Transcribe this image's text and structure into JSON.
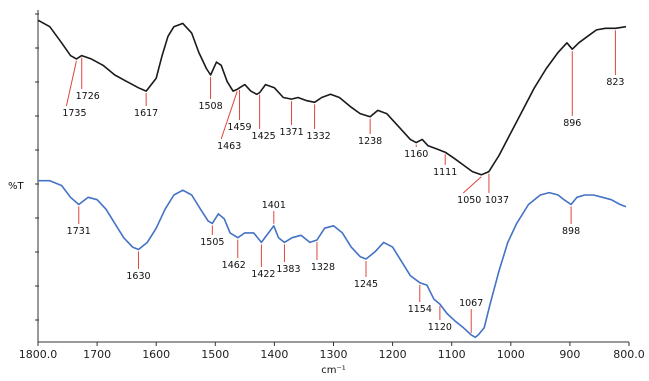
{
  "chart_data": {
    "type": "line",
    "xlabel": "cm⁻¹",
    "ylabel": "%T",
    "xlim": [
      1800,
      800
    ],
    "x_reversed": true,
    "grid": false,
    "x_ticks": [
      "1800.0",
      "1700",
      "1600",
      "1500",
      "1400",
      "1300",
      "1200",
      "1100",
      "1000",
      "900",
      "800.0"
    ],
    "x_tick_values": [
      1800,
      1700,
      1600,
      1500,
      1400,
      1300,
      1200,
      1100,
      1000,
      900,
      800
    ],
    "series": [
      {
        "color": "#1a1a1a",
        "points": [
          [
            1800,
            87
          ],
          [
            1780,
            85
          ],
          [
            1760,
            80
          ],
          [
            1745,
            76
          ],
          [
            1735,
            75
          ],
          [
            1726,
            76
          ],
          [
            1710,
            75
          ],
          [
            1690,
            73
          ],
          [
            1670,
            70
          ],
          [
            1650,
            68
          ],
          [
            1630,
            66
          ],
          [
            1617,
            65
          ],
          [
            1600,
            69
          ],
          [
            1590,
            76
          ],
          [
            1580,
            82
          ],
          [
            1570,
            85
          ],
          [
            1555,
            86
          ],
          [
            1540,
            83
          ],
          [
            1528,
            77
          ],
          [
            1515,
            72
          ],
          [
            1508,
            70
          ],
          [
            1498,
            74
          ],
          [
            1490,
            73
          ],
          [
            1480,
            68
          ],
          [
            1470,
            65
          ],
          [
            1463,
            65.5
          ],
          [
            1459,
            66
          ],
          [
            1450,
            67
          ],
          [
            1440,
            65
          ],
          [
            1430,
            64
          ],
          [
            1425,
            64.5
          ],
          [
            1415,
            67
          ],
          [
            1400,
            66
          ],
          [
            1385,
            63
          ],
          [
            1371,
            62.5
          ],
          [
            1360,
            63
          ],
          [
            1345,
            62
          ],
          [
            1332,
            61.5
          ],
          [
            1320,
            63
          ],
          [
            1305,
            64
          ],
          [
            1290,
            63
          ],
          [
            1270,
            60
          ],
          [
            1255,
            58
          ],
          [
            1238,
            57
          ],
          [
            1225,
            59
          ],
          [
            1210,
            58
          ],
          [
            1195,
            55
          ],
          [
            1180,
            52
          ],
          [
            1170,
            50
          ],
          [
            1160,
            49
          ],
          [
            1150,
            50
          ],
          [
            1140,
            48
          ],
          [
            1125,
            47
          ],
          [
            1111,
            46
          ],
          [
            1095,
            44
          ],
          [
            1080,
            42
          ],
          [
            1065,
            40
          ],
          [
            1050,
            39
          ],
          [
            1037,
            40
          ],
          [
            1020,
            45
          ],
          [
            1000,
            52
          ],
          [
            980,
            59
          ],
          [
            960,
            66
          ],
          [
            940,
            72
          ],
          [
            920,
            77
          ],
          [
            905,
            80
          ],
          [
            896,
            78
          ],
          [
            885,
            80
          ],
          [
            870,
            82
          ],
          [
            855,
            84
          ],
          [
            840,
            84.5
          ],
          [
            823,
            84.5
          ],
          [
            805,
            85
          ]
        ],
        "peaks": [
          {
            "wavenumber": 1735,
            "label": "1735"
          },
          {
            "wavenumber": 1726,
            "label": "1726"
          },
          {
            "wavenumber": 1617,
            "label": "1617"
          },
          {
            "wavenumber": 1508,
            "label": "1508"
          },
          {
            "wavenumber": 1463,
            "label": "1463"
          },
          {
            "wavenumber": 1459,
            "label": "1459"
          },
          {
            "wavenumber": 1425,
            "label": "1425"
          },
          {
            "wavenumber": 1371,
            "label": "1371"
          },
          {
            "wavenumber": 1332,
            "label": "1332"
          },
          {
            "wavenumber": 1238,
            "label": "1238"
          },
          {
            "wavenumber": 1160,
            "label": "1160"
          },
          {
            "wavenumber": 1111,
            "label": "1111"
          },
          {
            "wavenumber": 1050,
            "label": "1050"
          },
          {
            "wavenumber": 1037,
            "label": "1037"
          },
          {
            "wavenumber": 896,
            "label": "896"
          },
          {
            "wavenumber": 823,
            "label": "823"
          }
        ]
      },
      {
        "color": "#4472c4",
        "points": [
          [
            1800,
            37
          ],
          [
            1780,
            37
          ],
          [
            1760,
            36
          ],
          [
            1745,
            33.5
          ],
          [
            1731,
            32
          ],
          [
            1715,
            33.5
          ],
          [
            1700,
            33
          ],
          [
            1685,
            31
          ],
          [
            1670,
            28
          ],
          [
            1655,
            25
          ],
          [
            1640,
            23
          ],
          [
            1630,
            22.5
          ],
          [
            1615,
            24
          ],
          [
            1600,
            27
          ],
          [
            1585,
            31
          ],
          [
            1570,
            34
          ],
          [
            1555,
            35
          ],
          [
            1540,
            34
          ],
          [
            1525,
            31
          ],
          [
            1512,
            28.5
          ],
          [
            1505,
            28
          ],
          [
            1495,
            30
          ],
          [
            1485,
            29
          ],
          [
            1475,
            26
          ],
          [
            1462,
            25
          ],
          [
            1450,
            26
          ],
          [
            1435,
            26
          ],
          [
            1422,
            24
          ],
          [
            1410,
            26
          ],
          [
            1401,
            27.5
          ],
          [
            1393,
            25
          ],
          [
            1383,
            24
          ],
          [
            1370,
            25
          ],
          [
            1355,
            25.5
          ],
          [
            1340,
            24
          ],
          [
            1328,
            24.5
          ],
          [
            1315,
            27
          ],
          [
            1300,
            27.5
          ],
          [
            1285,
            26
          ],
          [
            1270,
            23
          ],
          [
            1255,
            21
          ],
          [
            1245,
            20.5
          ],
          [
            1230,
            22
          ],
          [
            1215,
            24
          ],
          [
            1200,
            23
          ],
          [
            1185,
            20
          ],
          [
            1170,
            17
          ],
          [
            1154,
            15.5
          ],
          [
            1142,
            15
          ],
          [
            1130,
            12
          ],
          [
            1120,
            11
          ],
          [
            1108,
            9
          ],
          [
            1095,
            7.5
          ],
          [
            1080,
            6
          ],
          [
            1067,
            4.5
          ],
          [
            1060,
            4
          ],
          [
            1055,
            4.5
          ],
          [
            1045,
            6
          ],
          [
            1035,
            11
          ],
          [
            1020,
            18
          ],
          [
            1005,
            24
          ],
          [
            990,
            28
          ],
          [
            970,
            32
          ],
          [
            950,
            34
          ],
          [
            935,
            34.5
          ],
          [
            920,
            34
          ],
          [
            910,
            33
          ],
          [
            898,
            32
          ],
          [
            888,
            33.5
          ],
          [
            875,
            34
          ],
          [
            860,
            34
          ],
          [
            845,
            33.5
          ],
          [
            830,
            33
          ],
          [
            815,
            32
          ],
          [
            805,
            31.5
          ]
        ],
        "peaks": [
          {
            "wavenumber": 1731,
            "label": "1731"
          },
          {
            "wavenumber": 1630,
            "label": "1630"
          },
          {
            "wavenumber": 1505,
            "label": "1505"
          },
          {
            "wavenumber": 1462,
            "label": "1462"
          },
          {
            "wavenumber": 1422,
            "label": "1422"
          },
          {
            "wavenumber": 1401,
            "label": "1401"
          },
          {
            "wavenumber": 1383,
            "label": "1383"
          },
          {
            "wavenumber": 1328,
            "label": "1328"
          },
          {
            "wavenumber": 1245,
            "label": "1245"
          },
          {
            "wavenumber": 1154,
            "label": "1154"
          },
          {
            "wavenumber": 1120,
            "label": "1120"
          },
          {
            "wavenumber": 1067,
            "label": "1067"
          },
          {
            "wavenumber": 898,
            "label": "898"
          }
        ]
      }
    ]
  }
}
